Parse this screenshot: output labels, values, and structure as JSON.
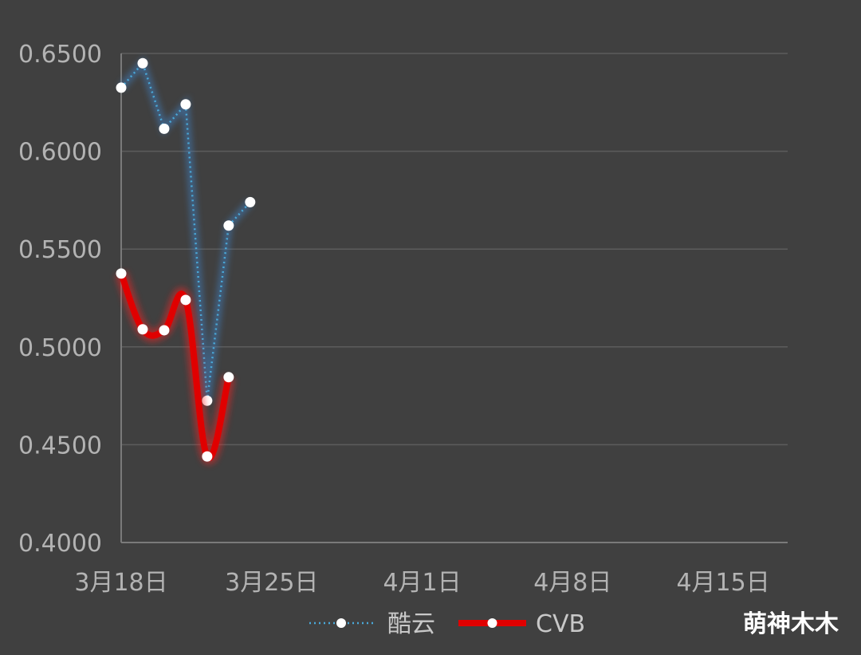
{
  "chart_data": {
    "type": "line",
    "x_axis": {
      "type": "date",
      "min": "2024-03-18",
      "max": "2024-04-18",
      "tick_labels": [
        "3月18日",
        "3月25日",
        "4月1日",
        "4月8日",
        "4月15日"
      ],
      "tick_dates": [
        "2024-03-18",
        "2024-03-25",
        "2024-04-01",
        "2024-04-08",
        "2024-04-15"
      ]
    },
    "y_axis": {
      "min": 0.4,
      "max": 0.65,
      "tick_values": [
        0.4,
        0.45,
        0.5,
        0.55,
        0.6,
        0.65
      ],
      "tick_labels": [
        "0.4000",
        "0.4500",
        "0.5000",
        "0.5500",
        "0.6000",
        "0.6500"
      ]
    },
    "grid": true,
    "legend_position": "bottom",
    "series": [
      {
        "name": "酷云",
        "style": "dotted",
        "color": "#4aa8d8",
        "x": [
          "2024-03-18",
          "2024-03-19",
          "2024-03-20",
          "2024-03-21",
          "2024-03-22",
          "2024-03-23",
          "2024-03-24"
        ],
        "values": [
          0.6325,
          0.645,
          0.6115,
          0.624,
          0.4725,
          0.562,
          0.574
        ]
      },
      {
        "name": "CVB",
        "style": "solid-thick",
        "color": "#e00000",
        "x": [
          "2024-03-18",
          "2024-03-19",
          "2024-03-20",
          "2024-03-21",
          "2024-03-22",
          "2024-03-23"
        ],
        "values": [
          0.5375,
          0.509,
          0.5085,
          0.524,
          0.444,
          0.4845
        ]
      }
    ],
    "background_color": "#404040",
    "grid_color": "#5c5c5c",
    "axis_color": "#7a7a7a"
  },
  "watermark": "萌神木木"
}
